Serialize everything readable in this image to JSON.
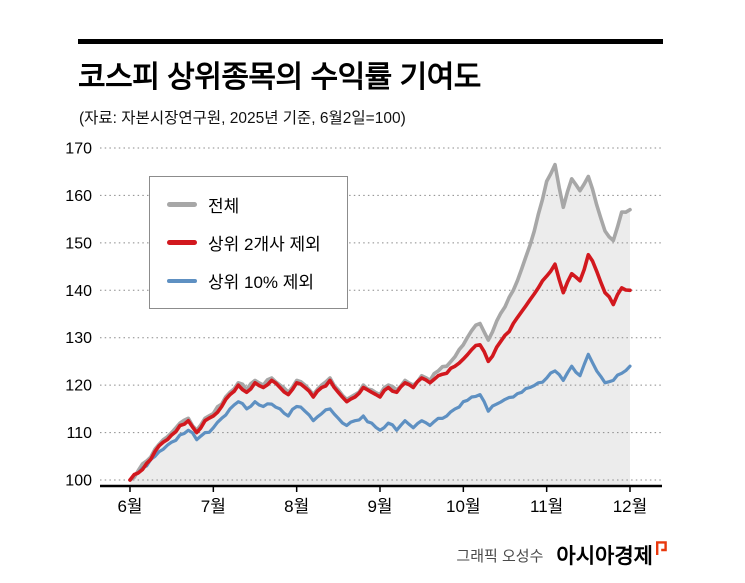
{
  "header": {
    "title": "코스피 상위종목의 수익률 기여도",
    "subtitle": "(자료: 자본시장연구원, 2025년 기준, 6월2일=100)"
  },
  "footer": {
    "credit": "그래픽 오성수",
    "brand": "아시아경제"
  },
  "chart_data": {
    "type": "line",
    "title": "코스피 상위종목의 수익률 기여도",
    "baseline_note": "6월2일=100",
    "xlabel": "",
    "ylabel": "",
    "x_range_months": [
      0,
      6
    ],
    "x_ticks": [
      "6월",
      "7월",
      "8월",
      "9월",
      "10월",
      "11월",
      "12월"
    ],
    "y_ticks": [
      100,
      110,
      120,
      130,
      140,
      150,
      160,
      170
    ],
    "ylim": [
      100,
      170
    ],
    "grid": "dotted-horizontal",
    "legend_position": "top-left",
    "series": [
      {
        "key": "total",
        "name": "전체",
        "color": "#a7a7a7",
        "width": 3.6,
        "fill": "#ececec",
        "values": [
          100,
          102,
          104,
          106.5,
          108.5,
          110,
          112,
          113,
          110.5,
          113,
          114,
          116,
          118.5,
          120.5,
          119,
          121,
          120,
          121.5,
          120,
          118.5,
          121,
          120,
          118,
          120,
          121.5,
          119,
          117,
          118,
          120,
          119,
          118,
          120,
          119,
          121,
          120,
          122,
          121,
          123,
          124,
          126,
          128.5,
          131.5,
          133,
          129.5,
          133.5,
          136.5,
          140,
          144.5,
          149.5,
          156,
          163,
          166.5,
          157.5,
          163.5,
          161,
          164,
          158,
          152.5,
          150.5,
          156.5,
          157
        ]
      },
      {
        "key": "ex-top2",
        "name": "상위 2개사 제외",
        "color": "#d2181e",
        "width": 3.6,
        "fill": null,
        "values": [
          100,
          101.5,
          103.5,
          106,
          108,
          109.5,
          111.5,
          112.5,
          110,
          112.5,
          113.5,
          115.5,
          118,
          120,
          118.5,
          120.5,
          119.5,
          121,
          119.5,
          118,
          120.5,
          119.5,
          117.5,
          119.5,
          121,
          118.5,
          116.5,
          117.5,
          119.5,
          118.5,
          117.5,
          119.5,
          118.5,
          120.5,
          119.5,
          121.5,
          120.5,
          122,
          122.5,
          124,
          125.5,
          127.5,
          128.5,
          125,
          128,
          130.5,
          133,
          135.5,
          138,
          140.5,
          143,
          145.5,
          139.5,
          143.5,
          142,
          147.5,
          144,
          139.5,
          137,
          140.5,
          140
        ]
      },
      {
        "key": "ex-top10",
        "name": "상위 10% 제외",
        "color": "#5e90c2",
        "width": 3.2,
        "fill": null,
        "values": [
          100,
          101.5,
          103,
          105,
          106.5,
          108,
          109.5,
          110.5,
          108.5,
          110,
          111,
          113,
          115,
          116.5,
          115,
          116.5,
          115.5,
          116,
          115,
          113.5,
          115.5,
          114.5,
          112.5,
          114,
          115,
          113,
          111.5,
          112.5,
          113.5,
          112,
          110.5,
          112,
          110.5,
          112.5,
          111,
          112.5,
          111.5,
          113,
          113.5,
          115,
          116.5,
          117.5,
          118,
          114.5,
          116,
          117,
          117.5,
          118.5,
          119.5,
          120.5,
          121.5,
          123,
          121,
          124,
          122,
          126.5,
          123,
          120.5,
          121,
          122.5,
          124
        ]
      }
    ]
  }
}
